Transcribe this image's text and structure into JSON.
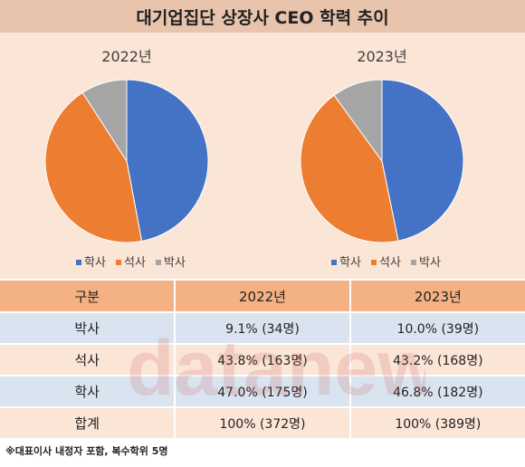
{
  "title": "대기업집단 상장사 CEO 학력 추이",
  "chart_data": [
    {
      "type": "pie",
      "title": "2022년",
      "categories": [
        "학사",
        "석사",
        "박사"
      ],
      "values": [
        47.0,
        43.8,
        9.1
      ],
      "colors": [
        "#4472c4",
        "#ed7d31",
        "#a5a5a5"
      ]
    },
    {
      "type": "pie",
      "title": "2023년",
      "categories": [
        "학사",
        "석사",
        "박사"
      ],
      "values": [
        46.8,
        43.2,
        10.0
      ],
      "colors": [
        "#4472c4",
        "#ed7d31",
        "#a5a5a5"
      ]
    }
  ],
  "legend": {
    "items": [
      {
        "label": "학사",
        "color": "#4472c4"
      },
      {
        "label": "석사",
        "color": "#ed7d31"
      },
      {
        "label": "박사",
        "color": "#a5a5a5"
      }
    ]
  },
  "table": {
    "headers": [
      "구분",
      "2022년",
      "2023년"
    ],
    "rows": [
      {
        "cat": "박사",
        "v2022": "9.1% (34명)",
        "v2023": "10.0% (39명)"
      },
      {
        "cat": "석사",
        "v2022": "43.8% (163명)",
        "v2023": "43.2% (168명)"
      },
      {
        "cat": "학사",
        "v2022": "47.0% (175명)",
        "v2023": "46.8% (182명)"
      },
      {
        "cat": "합계",
        "v2022": "100% (372명)",
        "v2023": "100% (389명)"
      }
    ]
  },
  "watermark": "datanews",
  "footnote": "※대표이사 내정자 포함, 복수학위 5명"
}
